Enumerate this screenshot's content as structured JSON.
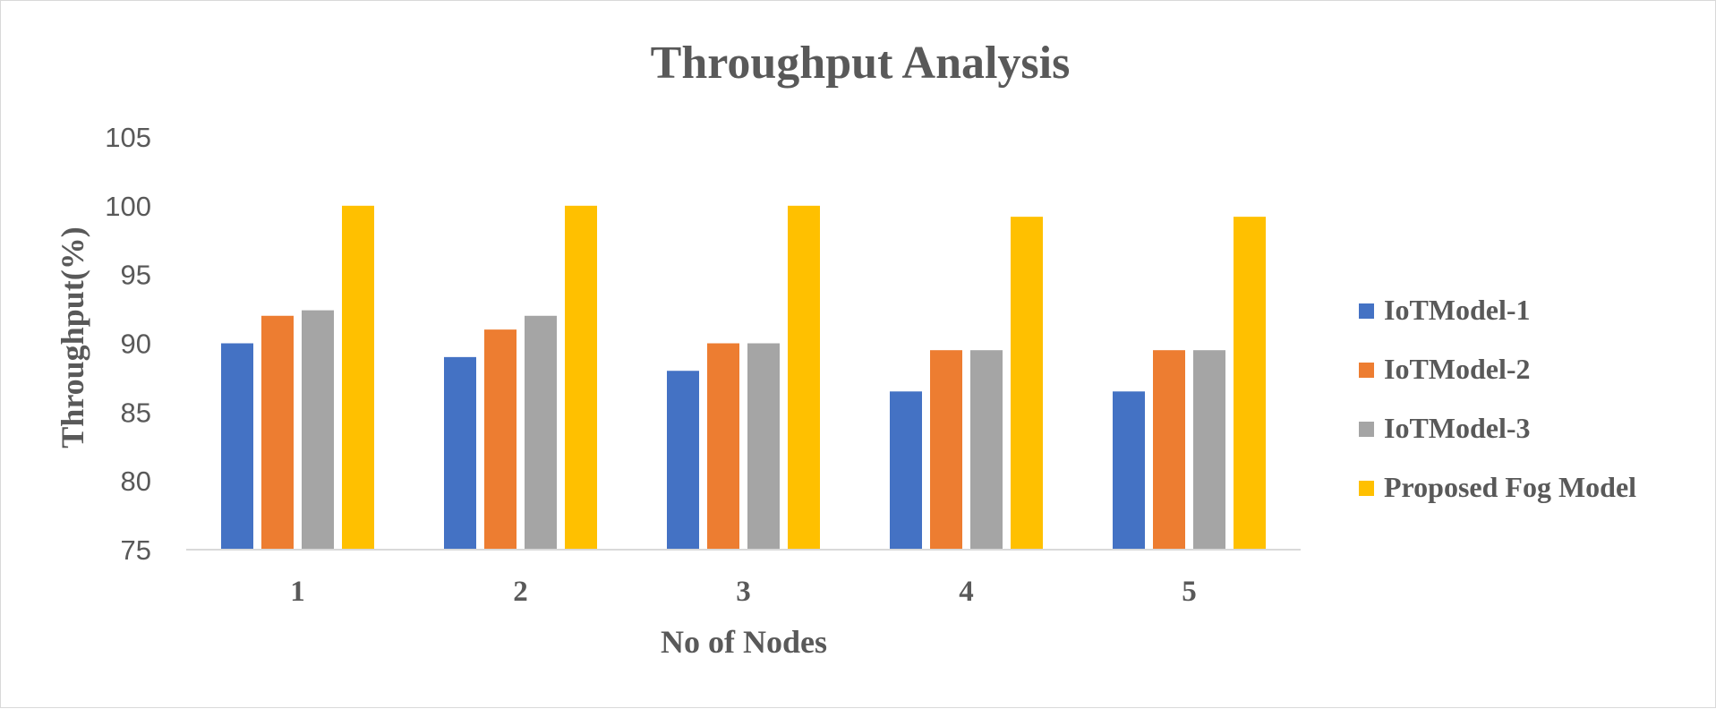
{
  "chart_data": {
    "type": "bar",
    "title": "Throughput Analysis",
    "xlabel": "No of Nodes",
    "ylabel": "Throughput(%)",
    "categories": [
      "1",
      "2",
      "3",
      "4",
      "5"
    ],
    "ylim": [
      75,
      105
    ],
    "yticks": [
      "75",
      "80",
      "85",
      "90",
      "95",
      "100",
      "105"
    ],
    "grid": false,
    "legend_position": "right",
    "series": [
      {
        "name": "IoTModel-1",
        "color": "#4472C4",
        "values": [
          90,
          89,
          88,
          86.5,
          86.5
        ]
      },
      {
        "name": "IoTModel-2",
        "color": "#ED7D31",
        "values": [
          92,
          91,
          90,
          89.5,
          89.5
        ]
      },
      {
        "name": "IoTModel-3",
        "color": "#A5A5A5",
        "values": [
          92.4,
          92,
          90,
          89.5,
          89.5
        ]
      },
      {
        "name": "Proposed Fog Model",
        "color": "#FFC000",
        "values": [
          100,
          100,
          100,
          99.2,
          99.2
        ]
      }
    ]
  }
}
